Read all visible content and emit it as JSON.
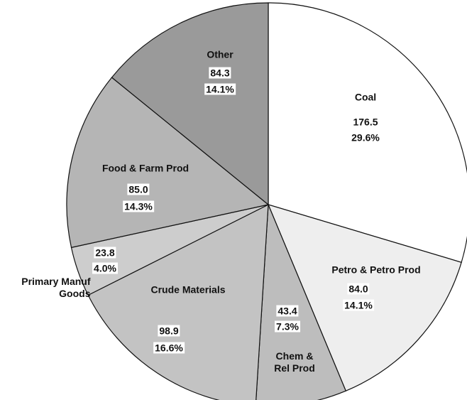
{
  "chart_data": {
    "type": "pie",
    "categories": [
      "Coal",
      "Petro & Petro Prod",
      "Chem & Rel Prod",
      "Crude Materials",
      "Primary Manuf Goods",
      "Food & Farm Prod",
      "Other"
    ],
    "values": [
      176.5,
      84.0,
      43.4,
      98.9,
      23.8,
      85.0,
      84.3
    ],
    "value_labels": [
      "176.5",
      "84.0",
      "43.4",
      "98.9",
      "23.8",
      "85.0",
      "84.3"
    ],
    "percents": [
      29.6,
      14.1,
      7.3,
      16.6,
      4.0,
      14.3,
      14.1
    ],
    "percent_labels": [
      "29.6%",
      "14.1%",
      "7.3%",
      "16.6%",
      "4.0%",
      "14.3%",
      "14.1%"
    ],
    "colors": [
      "#ffffff",
      "#eeeeee",
      "#bdbdbd",
      "#c3c3c3",
      "#cdcdcd",
      "#b5b5b5",
      "#9a9a9a"
    ]
  }
}
